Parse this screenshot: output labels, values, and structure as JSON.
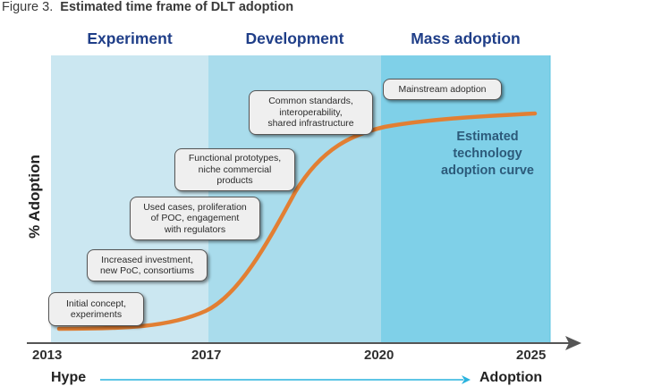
{
  "figure": {
    "caption_prefix": "Figure 3.",
    "caption_title": "Estimated time frame of DLT adoption"
  },
  "phases": [
    {
      "label": "Experiment",
      "color": "#cbe7f1"
    },
    {
      "label": "Development",
      "color": "#a9dcec"
    },
    {
      "label": "Mass adoption",
      "color": "#7fd0e8"
    }
  ],
  "milestones": [
    {
      "text": "Initial concept,\nexperiments"
    },
    {
      "text": "Increased investment,\nnew PoC, consortiums"
    },
    {
      "text": "Used cases, proliferation\nof POC, engagement\nwith regulators"
    },
    {
      "text": "Functional prototypes,\nniche commercial\nproducts"
    },
    {
      "text": "Common standards,\ninteroperability,\nshared infrastructure"
    },
    {
      "text": "Mainstream adoption"
    }
  ],
  "curve": {
    "label": "Estimated\ntechnology\nadoption curve",
    "color": "#e27f33"
  },
  "axes": {
    "y_label": "% Adoption",
    "x_ticks": [
      "2013",
      "2017",
      "2020",
      "2025"
    ],
    "hype_label": "Hype",
    "adoption_label": "Adoption",
    "arrow_color": "#29b3de"
  }
}
